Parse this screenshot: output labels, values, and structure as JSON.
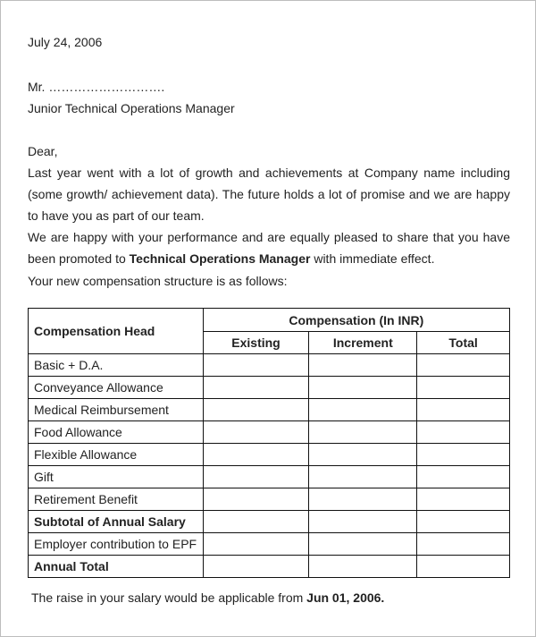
{
  "letter": {
    "date": "July 24, 2006",
    "recipient_name": "Mr. ……………………….",
    "recipient_title": "Junior Technical Operations Manager",
    "salutation": "Dear,",
    "para1": "Last year went with a lot of growth and achievements at Company name including (some growth/ achievement data). The future holds a lot of promise and we are happy to have you as part of our team.",
    "para2_pre": "We are happy with your performance and are equally pleased to share that you have been promoted to ",
    "para2_bold": "Technical Operations Manager",
    "para2_post": " with immediate effect.",
    "para3": "Your new compensation structure is as follows:",
    "footer_pre": "The raise in your salary would be applicable from ",
    "footer_bold": "Jun 01, 2006."
  },
  "table": {
    "head_label": "Compensation Head",
    "group_label": "Compensation (In INR)",
    "columns": [
      "Existing",
      "Increment",
      "Total"
    ],
    "rows": [
      {
        "label": "Basic + D.A.",
        "bold": false
      },
      {
        "label": "Conveyance Allowance",
        "bold": false
      },
      {
        "label": "Medical Reimbursement",
        "bold": false
      },
      {
        "label": "Food Allowance",
        "bold": false
      },
      {
        "label": "Flexible Allowance",
        "bold": false
      },
      {
        "label": "Gift",
        "bold": false
      },
      {
        "label": "Retirement Benefit",
        "bold": false
      },
      {
        "label": "Subtotal of Annual Salary",
        "bold": true
      },
      {
        "label": "Employer contribution to EPF",
        "bold": false
      },
      {
        "label": "Annual Total",
        "bold": true
      }
    ]
  }
}
